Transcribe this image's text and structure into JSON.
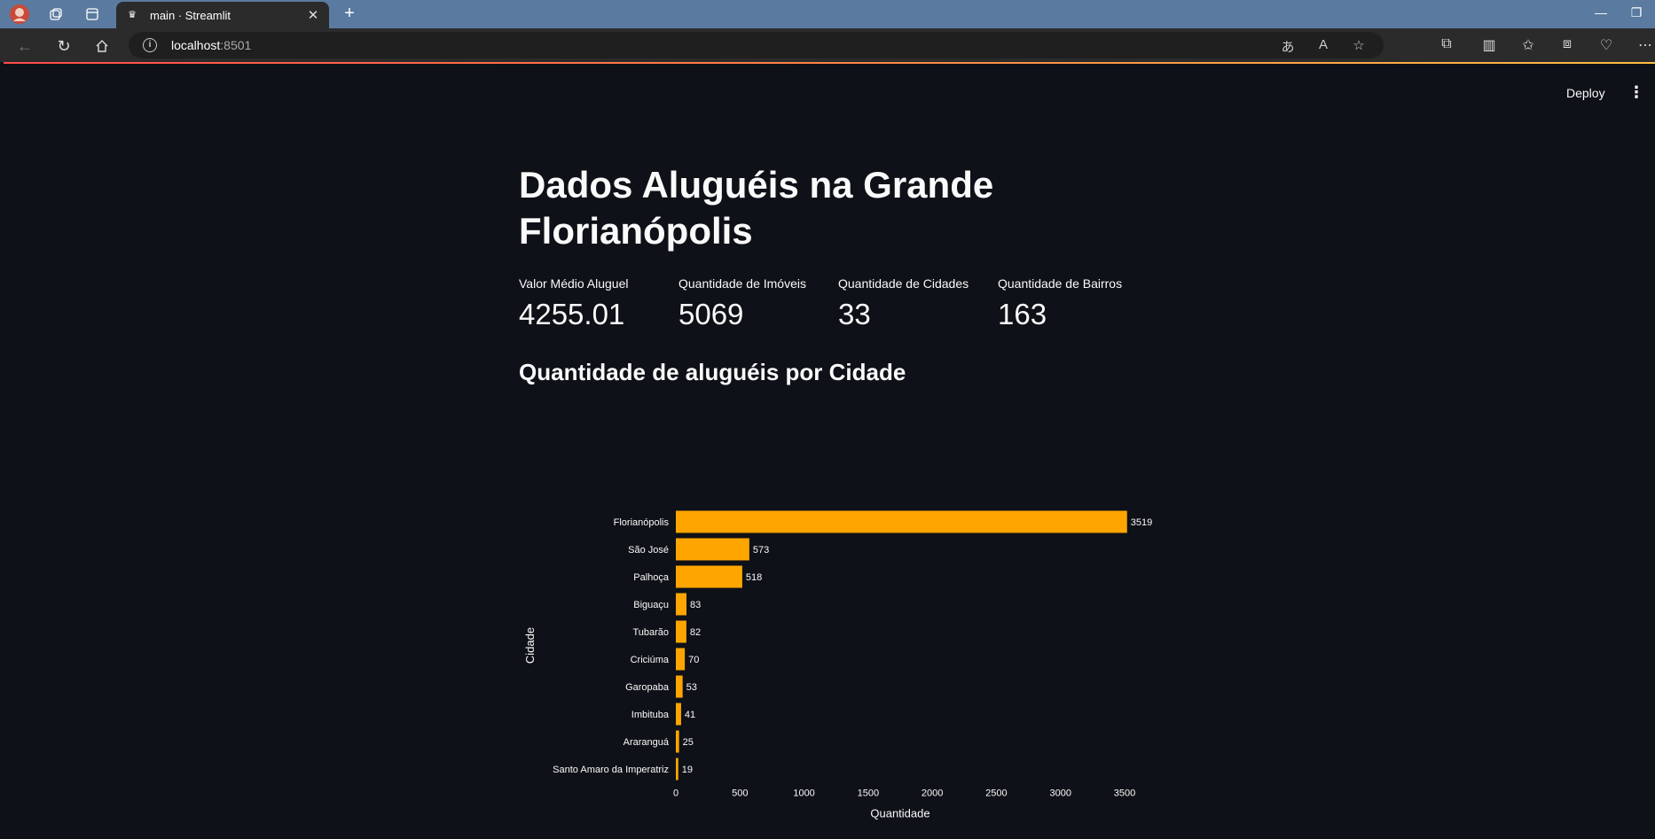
{
  "browser": {
    "tab_title": "main · Streamlit",
    "new_tab": "+",
    "address_host": "localhost",
    "address_port": ":8501"
  },
  "app": {
    "deploy_label": "Deploy",
    "title": "Dados Aluguéis na Grande Florianópolis",
    "metrics": [
      {
        "label": "Valor Médio Aluguel",
        "value": "4255.01"
      },
      {
        "label": "Quantidade de Imóveis",
        "value": "5069"
      },
      {
        "label": "Quantidade de Cidades",
        "value": "33"
      },
      {
        "label": "Quantidade de Bairros",
        "value": "163"
      }
    ],
    "chart_heading": "Quantidade de aluguéis por Cidade"
  },
  "chart_data": {
    "type": "bar",
    "orientation": "horizontal",
    "categories": [
      "Florianópolis",
      "São José",
      "Palhoça",
      "Biguaçu",
      "Tubarão",
      "Criciúma",
      "Garopaba",
      "Imbituba",
      "Araranguá",
      "Santo Amaro da Imperatriz"
    ],
    "values": [
      3519,
      573,
      518,
      83,
      82,
      70,
      53,
      41,
      25,
      19
    ],
    "xlabel": "Quantidade",
    "ylabel": "Cidade",
    "xlim": [
      0,
      3500
    ],
    "xticks": [
      0,
      500,
      1000,
      1500,
      2000,
      2500,
      3000,
      3500
    ],
    "bar_color": "#ffa500",
    "data_labels": true,
    "grid": false
  }
}
